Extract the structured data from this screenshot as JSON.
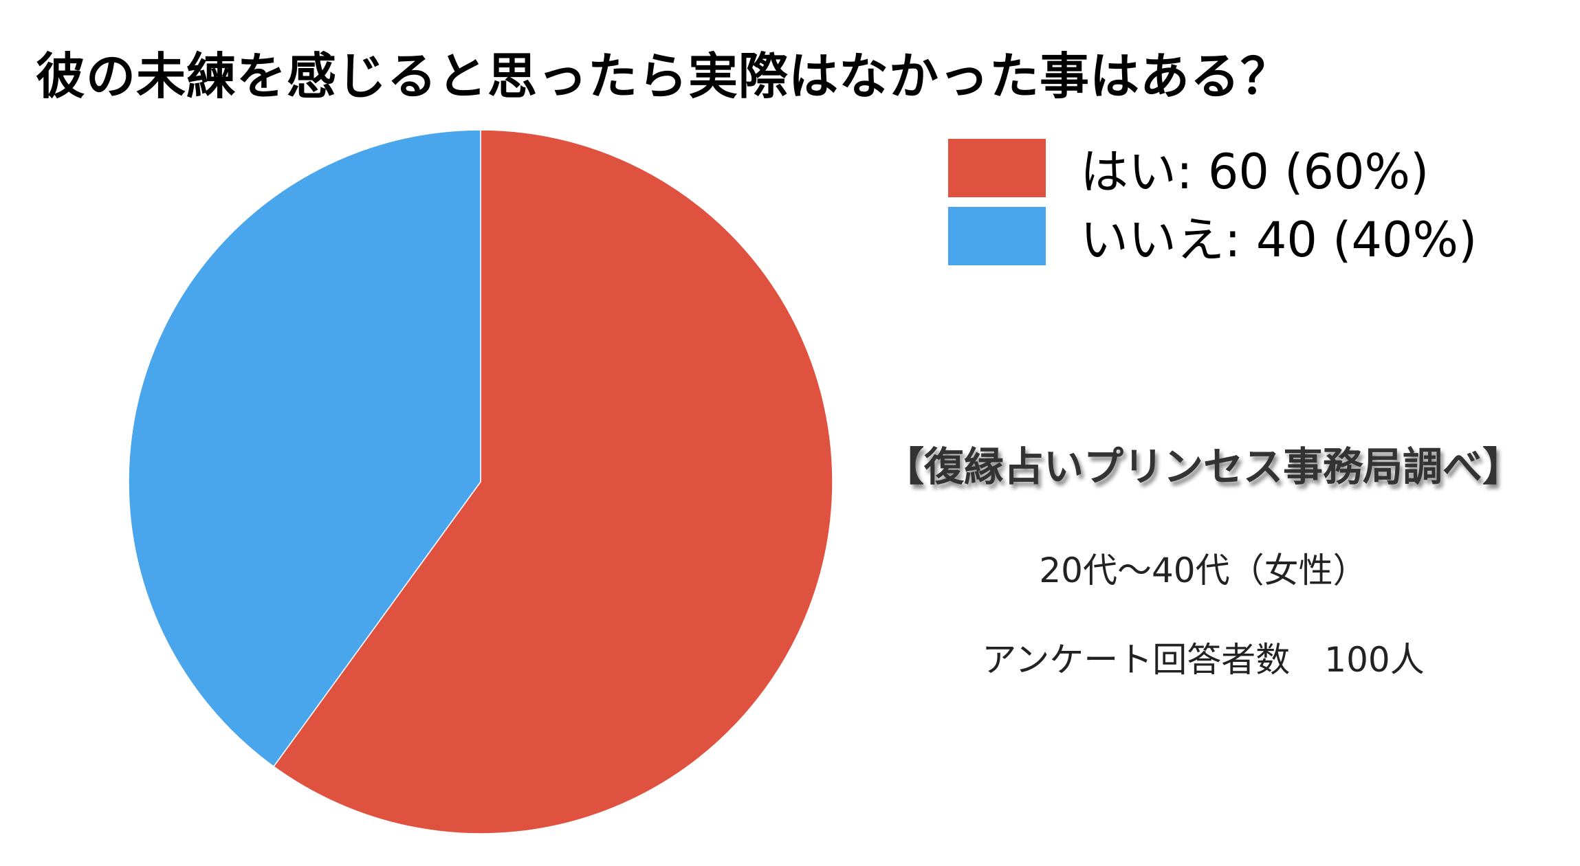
{
  "chart_data": {
    "type": "pie",
    "title": "彼の未練を感じると思ったら実際はなかった事はある？",
    "slices": [
      {
        "label": "はい",
        "value": 60,
        "percent": 60,
        "color": "#E05240",
        "legend_text": "はい: 60 (60%)"
      },
      {
        "label": "いいえ",
        "value": 40,
        "percent": 40,
        "color": "#49A5EC",
        "legend_text": "いいえ: 40 (40%)"
      }
    ],
    "legend_position": "top-right",
    "start_angle": "top, clockwise"
  },
  "notes": {
    "source": "【復縁占いプリンセス事務局調べ】",
    "demographic": "20代〜40代（女性）",
    "respondents": "アンケート回答者数　100人"
  }
}
